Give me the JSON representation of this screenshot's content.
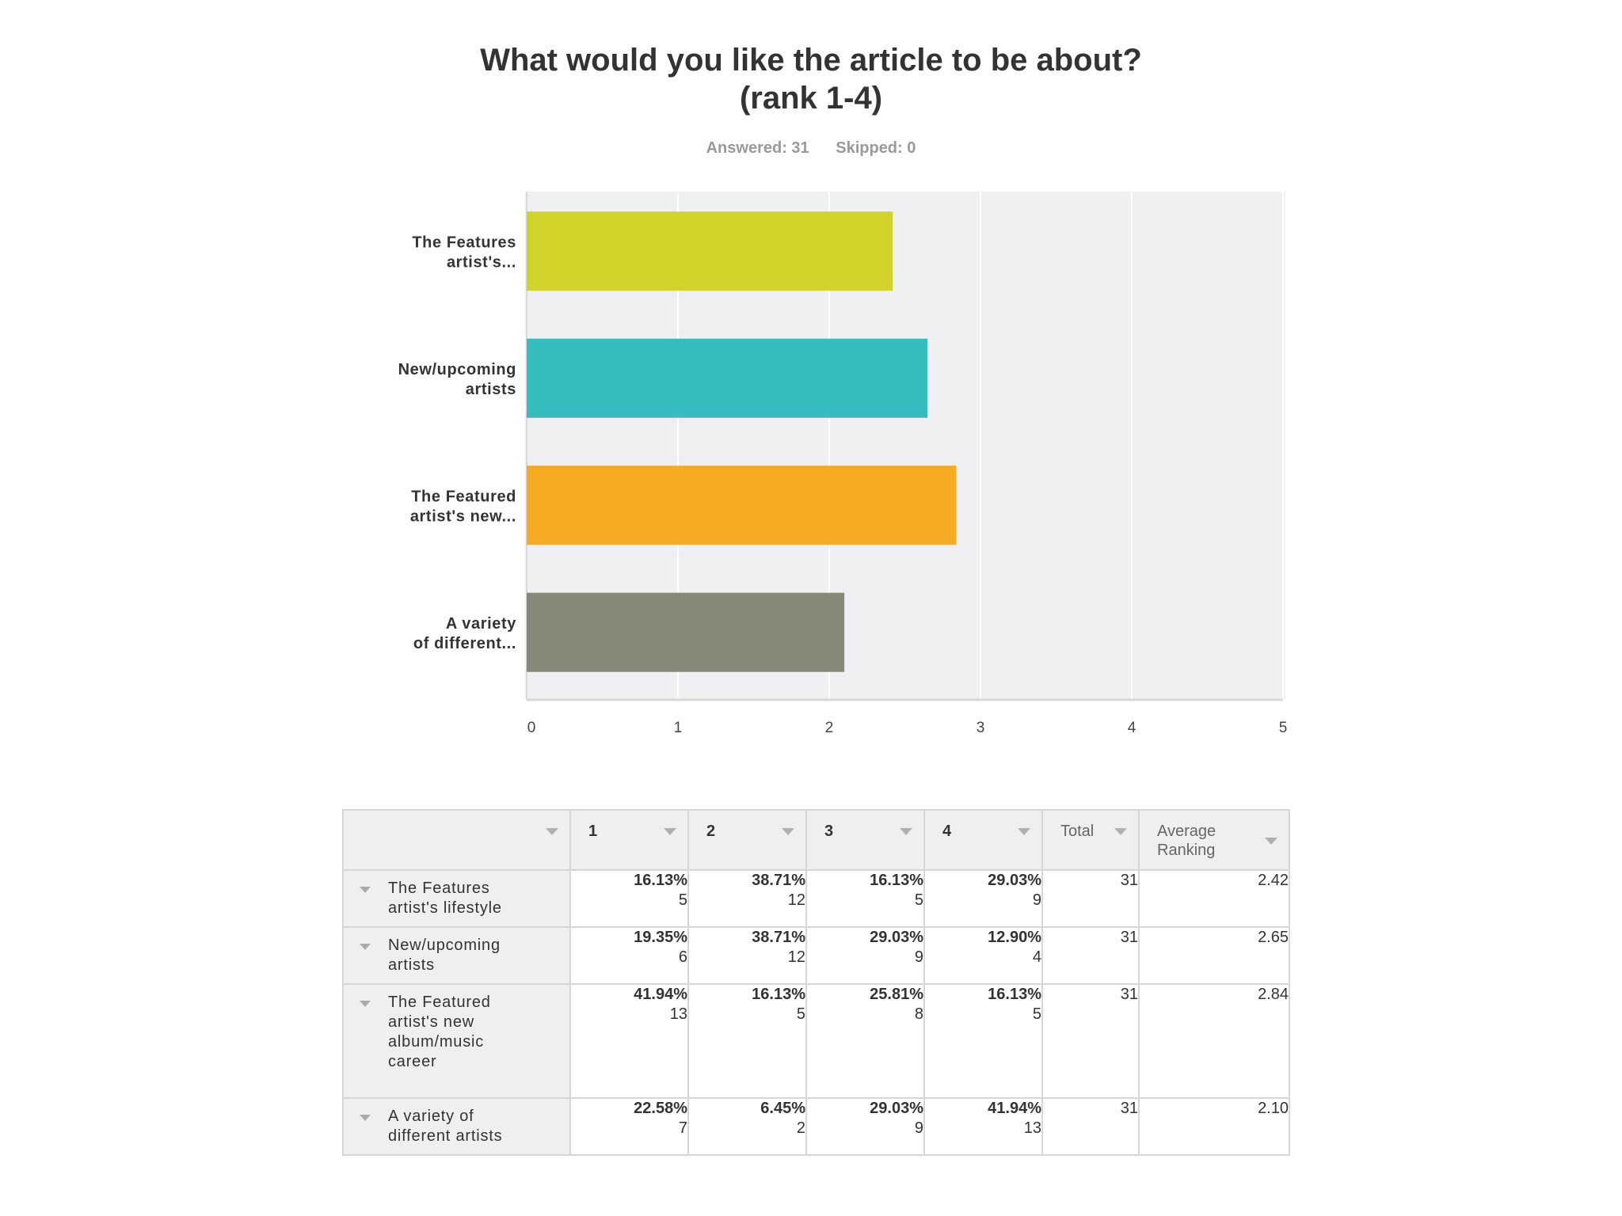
{
  "question": {
    "title_line1": "What would you like the article to be about?",
    "title_line2": "(rank 1-4)",
    "answered": "Answered: 31",
    "skipped": "Skipped: 0"
  },
  "chart_data": {
    "type": "bar",
    "orientation": "horizontal",
    "categories": [
      "The Features artist's...",
      "New/upcoming artists",
      "The Featured artist's new...",
      "A variety of different..."
    ],
    "values": [
      2.42,
      2.65,
      2.84,
      2.1
    ],
    "xlim": [
      0,
      5
    ],
    "x_ticks": [
      "0",
      "1",
      "2",
      "3",
      "4",
      "5"
    ],
    "grid": true,
    "colors": [
      "#d1d22a",
      "#35bcbe",
      "#f6a923",
      "#888878"
    ]
  },
  "table": {
    "headers": [
      "",
      "1",
      "2",
      "3",
      "4",
      "Total",
      "Average Ranking"
    ],
    "rows": [
      {
        "label": "The Features artist's lifestyle",
        "cells": [
          {
            "pct": "16.13%",
            "count": "5"
          },
          {
            "pct": "38.71%",
            "count": "12"
          },
          {
            "pct": "16.13%",
            "count": "5"
          },
          {
            "pct": "29.03%",
            "count": "9"
          }
        ],
        "total": "31",
        "avg": "2.42"
      },
      {
        "label": "New/upcoming artists",
        "cells": [
          {
            "pct": "19.35%",
            "count": "6"
          },
          {
            "pct": "38.71%",
            "count": "12"
          },
          {
            "pct": "29.03%",
            "count": "9"
          },
          {
            "pct": "12.90%",
            "count": "4"
          }
        ],
        "total": "31",
        "avg": "2.65"
      },
      {
        "label": "The Featured artist's new album/music career",
        "cells": [
          {
            "pct": "41.94%",
            "count": "13"
          },
          {
            "pct": "16.13%",
            "count": "5"
          },
          {
            "pct": "25.81%",
            "count": "8"
          },
          {
            "pct": "16.13%",
            "count": "5"
          }
        ],
        "total": "31",
        "avg": "2.84"
      },
      {
        "label": "A variety of different artists",
        "cells": [
          {
            "pct": "22.58%",
            "count": "7"
          },
          {
            "pct": "6.45%",
            "count": "2"
          },
          {
            "pct": "29.03%",
            "count": "9"
          },
          {
            "pct": "41.94%",
            "count": "13"
          }
        ],
        "total": "31",
        "avg": "2.10"
      }
    ]
  }
}
